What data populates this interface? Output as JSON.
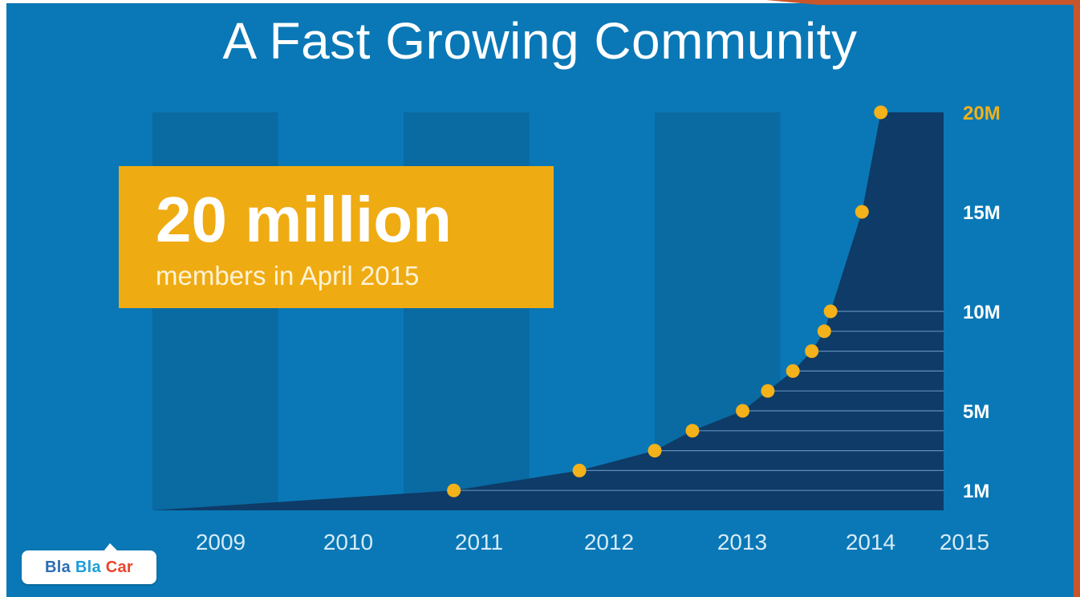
{
  "title": "A Fast Growing Community",
  "callout": {
    "headline": "20 million",
    "subline": "members in April 2015"
  },
  "logo": {
    "parts": [
      "Bla ",
      "Bla ",
      "Car"
    ],
    "colors": [
      "#2a6db3",
      "#1d9fd8",
      "#e7442c"
    ]
  },
  "colors": {
    "background": "#0a78b6",
    "band": "#0a6aa2",
    "area": "#0e3b67",
    "point": "#f3b11a",
    "right_panel": "#c9562a",
    "axis_text": "#d6ebf7"
  },
  "chart_data": {
    "type": "area",
    "title": "A Fast Growing Community",
    "xlabel": "",
    "ylabel": "",
    "x_categories": [
      "2009",
      "2010",
      "2011",
      "2012",
      "2013",
      "2014",
      "2015"
    ],
    "x_range": [
      2009,
      2015.3
    ],
    "y_ticks": [
      {
        "label": "1M",
        "value": 1
      },
      {
        "label": "5M",
        "value": 5
      },
      {
        "label": "10M",
        "value": 10
      },
      {
        "label": "15M",
        "value": 15
      },
      {
        "label": "20M",
        "value": 20
      }
    ],
    "ylim": [
      0,
      20
    ],
    "grid": "horizontal lines every 1M up to 10M",
    "series": [
      {
        "name": "",
        "points": [
          {
            "x": 2009.0,
            "y": 0
          },
          {
            "x": 2011.4,
            "y": 1
          },
          {
            "x": 2012.4,
            "y": 2
          },
          {
            "x": 2013.0,
            "y": 3
          },
          {
            "x": 2013.3,
            "y": 4
          },
          {
            "x": 2013.7,
            "y": 5
          },
          {
            "x": 2013.9,
            "y": 6
          },
          {
            "x": 2014.1,
            "y": 7
          },
          {
            "x": 2014.25,
            "y": 8
          },
          {
            "x": 2014.35,
            "y": 9
          },
          {
            "x": 2014.4,
            "y": 10
          },
          {
            "x": 2014.65,
            "y": 15
          },
          {
            "x": 2014.8,
            "y": 20
          }
        ]
      }
    ]
  }
}
